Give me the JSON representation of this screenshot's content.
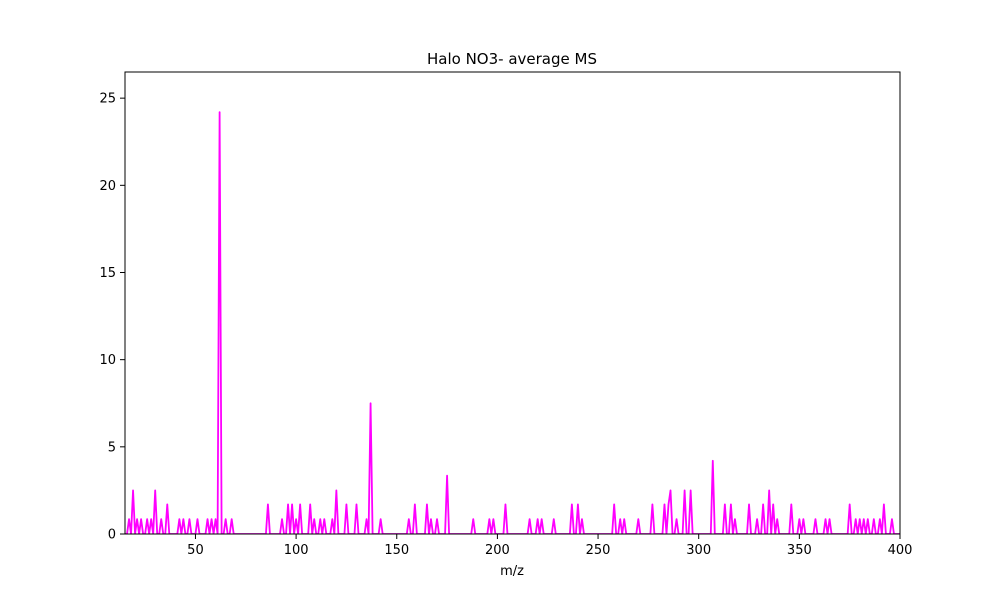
{
  "chart_data": {
    "type": "line",
    "title": "Halo NO3- average MS",
    "xlabel": "m/z",
    "ylabel": "",
    "xlim": [
      15,
      400
    ],
    "ylim": [
      0,
      26.5
    ],
    "xticks": [
      50,
      100,
      150,
      200,
      250,
      300,
      350,
      400
    ],
    "yticks": [
      0,
      5,
      10,
      15,
      20,
      25
    ],
    "grid": false,
    "legend": "none",
    "series": [
      {
        "color": "#ff00ff",
        "peaks": [
          [
            17,
            0.85
          ],
          [
            19,
            2.5
          ],
          [
            21,
            0.85
          ],
          [
            23,
            0.85
          ],
          [
            26,
            0.85
          ],
          [
            28,
            0.85
          ],
          [
            30,
            2.5
          ],
          [
            33,
            0.85
          ],
          [
            36,
            1.7
          ],
          [
            42,
            0.85
          ],
          [
            44,
            0.85
          ],
          [
            47,
            0.85
          ],
          [
            51,
            0.85
          ],
          [
            56,
            0.85
          ],
          [
            58,
            0.85
          ],
          [
            60,
            0.85
          ],
          [
            62,
            24.2
          ],
          [
            65,
            0.85
          ],
          [
            68,
            0.85
          ],
          [
            86,
            1.7
          ],
          [
            93,
            0.85
          ],
          [
            96,
            1.7
          ],
          [
            98,
            1.7
          ],
          [
            100,
            0.85
          ],
          [
            102,
            1.7
          ],
          [
            107,
            1.7
          ],
          [
            109,
            0.85
          ],
          [
            112,
            0.85
          ],
          [
            114,
            0.85
          ],
          [
            118,
            0.85
          ],
          [
            120,
            2.5
          ],
          [
            125,
            1.7
          ],
          [
            130,
            1.7
          ],
          [
            135,
            0.85
          ],
          [
            137,
            7.5
          ],
          [
            142,
            0.85
          ],
          [
            156,
            0.85
          ],
          [
            159,
            1.7
          ],
          [
            165,
            1.7
          ],
          [
            167,
            0.85
          ],
          [
            170,
            0.85
          ],
          [
            175,
            3.35
          ],
          [
            188,
            0.85
          ],
          [
            196,
            0.85
          ],
          [
            198,
            0.85
          ],
          [
            204,
            1.7
          ],
          [
            216,
            0.85
          ],
          [
            220,
            0.85
          ],
          [
            222,
            0.85
          ],
          [
            228,
            0.85
          ],
          [
            237,
            1.7
          ],
          [
            240,
            1.7
          ],
          [
            242,
            0.85
          ],
          [
            258,
            1.7
          ],
          [
            261,
            0.85
          ],
          [
            263,
            0.85
          ],
          [
            270,
            0.85
          ],
          [
            277,
            1.7
          ],
          [
            283,
            1.7
          ],
          [
            285,
            1.7
          ],
          [
            286,
            2.5
          ],
          [
            289,
            0.85
          ],
          [
            293,
            2.5
          ],
          [
            296,
            2.5
          ],
          [
            307,
            4.2
          ],
          [
            313,
            1.7
          ],
          [
            316,
            1.7
          ],
          [
            318,
            0.85
          ],
          [
            325,
            1.7
          ],
          [
            329,
            0.85
          ],
          [
            332,
            1.7
          ],
          [
            335,
            2.5
          ],
          [
            337,
            1.7
          ],
          [
            339,
            0.85
          ],
          [
            346,
            1.7
          ],
          [
            350,
            0.85
          ],
          [
            352,
            0.85
          ],
          [
            358,
            0.85
          ],
          [
            363,
            0.85
          ],
          [
            365,
            0.85
          ],
          [
            375,
            1.7
          ],
          [
            378,
            0.85
          ],
          [
            380,
            0.85
          ],
          [
            382,
            0.85
          ],
          [
            384,
            0.85
          ],
          [
            387,
            0.85
          ],
          [
            390,
            0.85
          ],
          [
            392,
            1.7
          ],
          [
            396,
            0.85
          ]
        ]
      }
    ]
  }
}
